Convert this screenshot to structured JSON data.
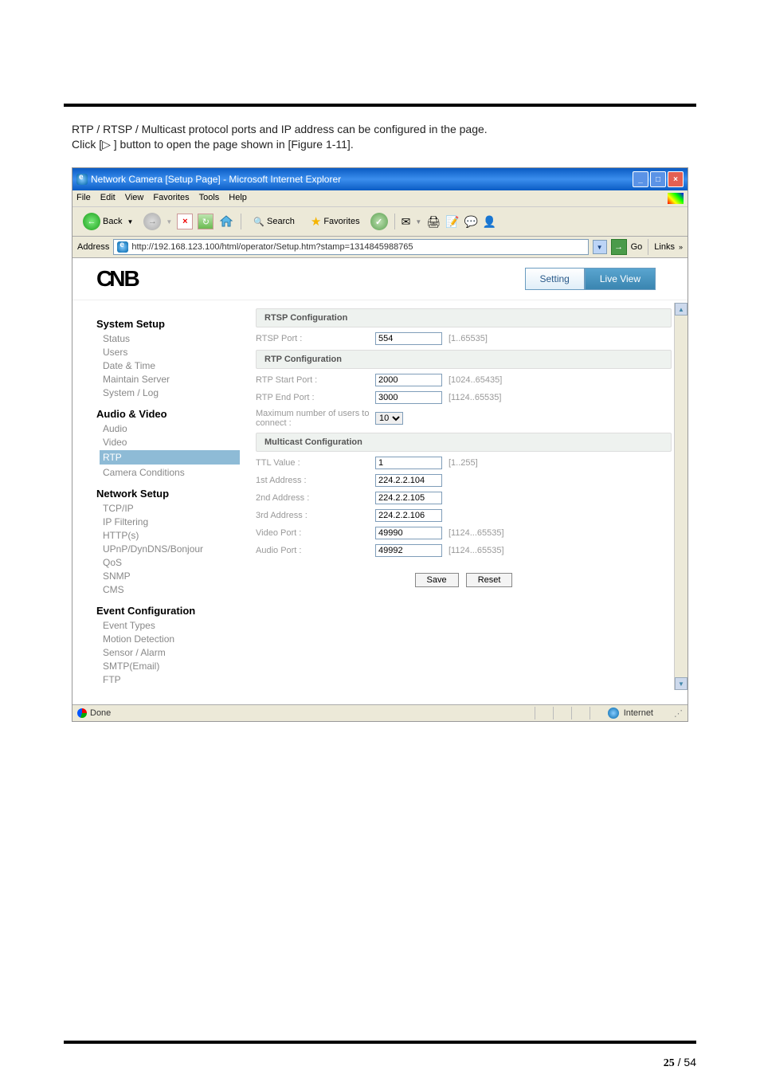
{
  "intro": {
    "p1": "RTP / RTSP / Multicast protocol ports and IP address can be configured in the page.",
    "p2": "Click [▷     ] button to open the page shown in [Figure 1-11]."
  },
  "window": {
    "title": "Network Camera [Setup Page] - Microsoft Internet Explorer"
  },
  "menu": {
    "file": "File",
    "edit": "Edit",
    "view": "View",
    "favorites": "Favorites",
    "tools": "Tools",
    "help": "Help"
  },
  "toolbar": {
    "back": "Back",
    "search": "Search",
    "favorites": "Favorites"
  },
  "address": {
    "label": "Address",
    "url": "http://192.168.123.100/html/operator/Setup.htm?stamp=1314845988765",
    "go": "Go",
    "links": "Links"
  },
  "logo": "CNB",
  "tabs": {
    "setting": "Setting",
    "live": "Live View"
  },
  "sidebar": {
    "system": "System Setup",
    "status": "Status",
    "users": "Users",
    "date": "Date & Time",
    "maintain": "Maintain Server",
    "syslog": "System / Log",
    "av": "Audio & Video",
    "audio": "Audio",
    "video": "Video",
    "rtp": "RTP",
    "camera": "Camera Conditions",
    "net": "Network Setup",
    "tcpip": "TCP/IP",
    "ipfilter": "IP Filtering",
    "https": "HTTP(s)",
    "upnp": "UPnP/DynDNS/Bonjour",
    "qos": "QoS",
    "snmp": "SNMP",
    "cms": "CMS",
    "event": "Event Configuration",
    "evtypes": "Event Types",
    "motion": "Motion Detection",
    "sensor": "Sensor / Alarm",
    "smtp": "SMTP(Email)",
    "ftp": "FTP"
  },
  "rtsp": {
    "title": "RTSP Configuration",
    "portlbl": "RTSP Port :",
    "port": "554",
    "hint": "[1..65535]"
  },
  "rtp": {
    "title": "RTP Configuration",
    "startlbl": "RTP Start Port :",
    "start": "2000",
    "starthint": "[1024..65435]",
    "endlbl": "RTP End Port :",
    "end": "3000",
    "endhint": "[1124..65535]",
    "maxlbl": "Maximum number of users to connect :",
    "max": "10"
  },
  "multi": {
    "title": "Multicast Configuration",
    "ttllbl": "TTL Value :",
    "ttl": "1",
    "ttlhint": "[1..255]",
    "a1lbl": "1st Address :",
    "a1": "224.2.2.104",
    "a2lbl": "2nd Address :",
    "a2": "224.2.2.105",
    "a3lbl": "3rd Address :",
    "a3": "224.2.2.106",
    "vplbl": "Video Port :",
    "vp": "49990",
    "vphint": "[1124...65535]",
    "aplbl": "Audio Port :",
    "ap": "49992",
    "aphint": "[1124...65535]"
  },
  "btn": {
    "save": "Save",
    "reset": "Reset"
  },
  "statusbar": {
    "done": "Done",
    "internet": "Internet"
  },
  "footer": {
    "page": "25",
    "sep": " / ",
    "total": "54"
  }
}
